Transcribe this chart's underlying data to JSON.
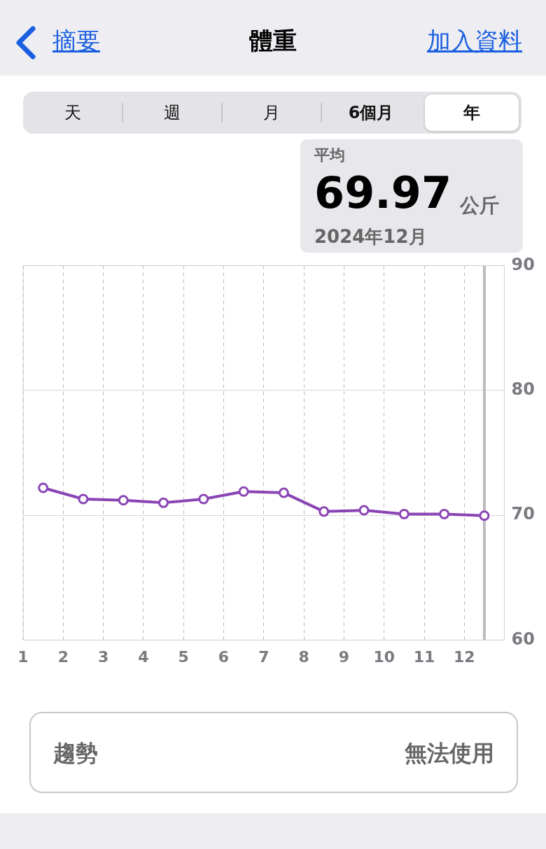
{
  "chart_data": {
    "type": "line",
    "title": "體重",
    "annotations": [
      "摘要",
      "加入資料",
      "天",
      "週",
      "月",
      "6個月",
      "年",
      "平均",
      "69.97",
      "公斤",
      "2024年12月",
      "趨勢",
      "無法使用"
    ],
    "x": [
      1.5,
      2.5,
      3.5,
      4.5,
      5.5,
      6.5,
      7.5,
      8.5,
      9.5,
      10.5,
      11.5,
      12.5
    ],
    "series": [
      {
        "color": "#8a45b5",
        "values": [
          72.2,
          71.3,
          71.2,
          71.0,
          71.3,
          71.9,
          71.8,
          70.3,
          70.4,
          70.1,
          70.1,
          69.97
        ]
      }
    ],
    "xlim": [
      1,
      13
    ],
    "xticks": [
      1,
      2,
      3,
      4,
      5,
      6,
      7,
      8,
      9,
      10,
      11,
      12
    ],
    "ylim": [
      60,
      90
    ],
    "yticks": [
      60,
      70,
      80,
      90
    ],
    "ref_lines": [
      {
        "axis": "x",
        "value": 12.5,
        "color": "#bbbbbf"
      }
    ],
    "grid": true,
    "marker": "circle",
    "line_style": "solid"
  }
}
